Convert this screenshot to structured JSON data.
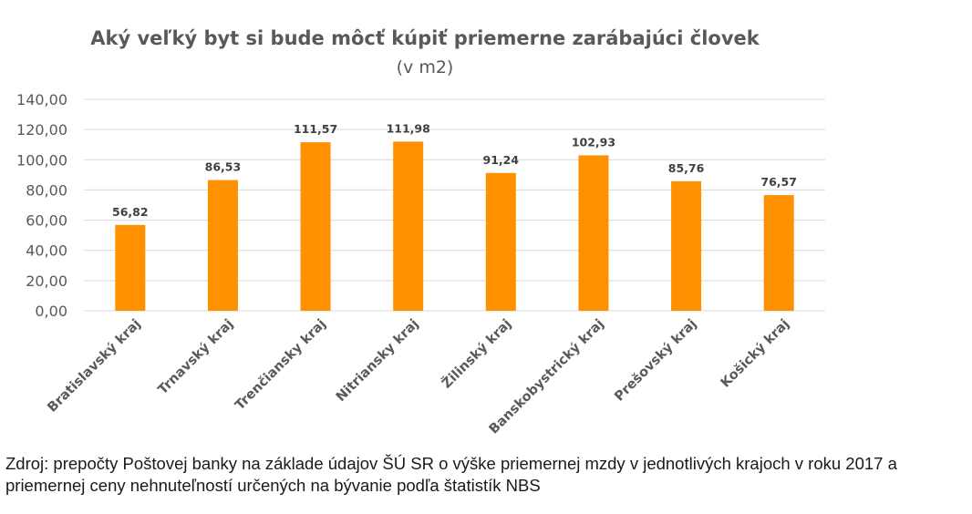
{
  "chart_data": {
    "type": "bar",
    "title": "Aký veľký byt si bude môcť kúpiť priemerne zarábajúci človek",
    "subtitle": "(v m2)",
    "categories": [
      "Bratislavský kraj",
      "Trnavský kraj",
      "Trenčiansky kraj",
      "Nitriansky kraj",
      "Žilinský kraj",
      "Banskobystrický kraj",
      "Prešovský kraj",
      "Košický kraj"
    ],
    "values": [
      56.82,
      86.53,
      111.57,
      111.98,
      91.24,
      102.93,
      85.76,
      76.57
    ],
    "data_labels": [
      "56,82",
      "86,53",
      "111,57",
      "111,98",
      "91,24",
      "102,93",
      "85,76",
      "76,57"
    ],
    "y_ticks": [
      0,
      20,
      40,
      60,
      80,
      100,
      120,
      140
    ],
    "y_tick_labels": [
      "0,00",
      "20,00",
      "40,00",
      "60,00",
      "80,00",
      "100,00",
      "120,00",
      "140,00"
    ],
    "ylim": [
      0,
      140
    ],
    "xlabel": "",
    "ylabel": "",
    "grid": true,
    "legend": "none",
    "bar_color": "#ff9000"
  },
  "source": "Zdroj: prepočty Poštovej banky na základe údajov ŠÚ SR o výške priemernej mzdy v jednotlivých krajoch v roku 2017 a priemernej ceny nehnuteľností určených na bývanie podľa štatistík NBS"
}
